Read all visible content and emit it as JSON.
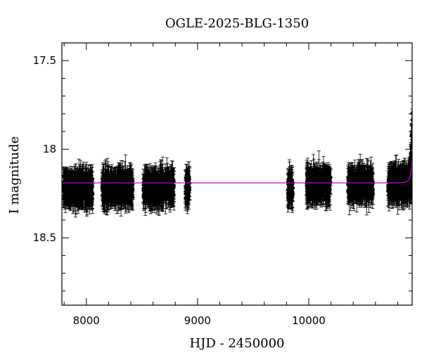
{
  "chart_data": {
    "type": "scatter",
    "title": "OGLE-2025-BLG-1350",
    "xlabel": "HJD - 2450000",
    "ylabel": "I magnitude",
    "xlim": [
      7780,
      10930
    ],
    "ylim": [
      18.88,
      17.4
    ],
    "y_inverted": true,
    "x_ticks": [
      8000,
      9000,
      10000
    ],
    "x_tick_labels": [
      "8000",
      "9000",
      "10000"
    ],
    "y_ticks": [
      17.5,
      18,
      18.5
    ],
    "y_tick_labels": [
      "17.5",
      "18",
      "18.5"
    ],
    "grid": false,
    "legend": "none",
    "colors": {
      "data": "#000000",
      "model": "#cc00cc",
      "background": "#ffffff"
    },
    "series": [
      {
        "type": "points",
        "marker": "filled-circle-with-errorbars",
        "seasons": [
          {
            "x_range": [
              7790,
              8060
            ],
            "mag_center": 18.22,
            "mag_spread": 0.045,
            "err_range": [
              0.03,
              0.1
            ]
          },
          {
            "x_range": [
              8140,
              8420
            ],
            "mag_center": 18.22,
            "mag_spread": 0.045,
            "err_range": [
              0.03,
              0.1
            ]
          },
          {
            "x_range": [
              8510,
              8790
            ],
            "mag_center": 18.22,
            "mag_spread": 0.045,
            "err_range": [
              0.03,
              0.1
            ]
          },
          {
            "x_range": [
              8890,
              8930
            ],
            "mag_center": 18.22,
            "mag_spread": 0.045,
            "err_range": [
              0.03,
              0.1
            ]
          },
          {
            "x_range": [
              9810,
              9860
            ],
            "mag_center": 18.22,
            "mag_spread": 0.045,
            "err_range": [
              0.03,
              0.1
            ]
          },
          {
            "x_range": [
              9980,
              10200
            ],
            "mag_center": 18.2,
            "mag_spread": 0.045,
            "err_range": [
              0.03,
              0.1
            ]
          },
          {
            "x_range": [
              10350,
              10580
            ],
            "mag_center": 18.2,
            "mag_spread": 0.045,
            "err_range": [
              0.03,
              0.1
            ]
          },
          {
            "x_range": [
              10710,
              10930
            ],
            "mag_center": 18.2,
            "mag_spread": 0.045,
            "err_range": [
              0.03,
              0.1
            ]
          }
        ],
        "rise": {
          "x_range": [
            10900,
            10930
          ],
          "mag_start": 18.15,
          "mag_end": 17.8
        }
      },
      {
        "type": "line",
        "baseline_mag": 18.19,
        "model": {
          "t0": 10960,
          "tE": 20,
          "u0": 0.02
        },
        "x_range": [
          7780,
          10930
        ]
      }
    ]
  }
}
